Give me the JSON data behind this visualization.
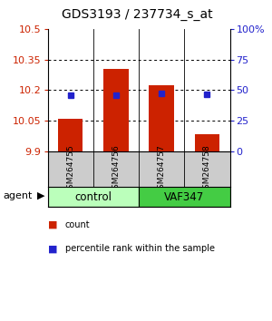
{
  "title": "GDS3193 / 237734_s_at",
  "samples": [
    "GSM264755",
    "GSM264756",
    "GSM264757",
    "GSM264758"
  ],
  "bar_bottoms": [
    9.9,
    9.9,
    9.9,
    9.9
  ],
  "bar_tops": [
    10.06,
    10.305,
    10.225,
    9.985
  ],
  "blue_dot_values": [
    10.175,
    10.175,
    10.185,
    10.18
  ],
  "bar_color": "#cc2200",
  "dot_color": "#2222cc",
  "left_ylim": [
    9.9,
    10.5
  ],
  "left_yticks": [
    9.9,
    10.05,
    10.2,
    10.35,
    10.5
  ],
  "left_ytick_labels": [
    "9.9",
    "10.05",
    "10.2",
    "10.35",
    "10.5"
  ],
  "right_ylim": [
    0,
    100
  ],
  "right_yticks": [
    0,
    25,
    50,
    75,
    100
  ],
  "right_ytick_labels": [
    "0",
    "25",
    "50",
    "75",
    "100%"
  ],
  "groups": [
    {
      "label": "control",
      "samples": [
        0,
        1
      ],
      "color": "#bbffbb"
    },
    {
      "label": "VAF347",
      "samples": [
        2,
        3
      ],
      "color": "#44cc44"
    }
  ],
  "agent_label": "agent",
  "legend_items": [
    {
      "label": "count",
      "color": "#cc2200"
    },
    {
      "label": "percentile rank within the sample",
      "color": "#2222cc"
    }
  ],
  "background_color": "#ffffff",
  "title_fontsize": 10,
  "tick_fontsize": 8,
  "bar_width": 0.55,
  "sample_gray": "#cccccc",
  "grid_yticks": [
    10.05,
    10.2,
    10.35
  ]
}
